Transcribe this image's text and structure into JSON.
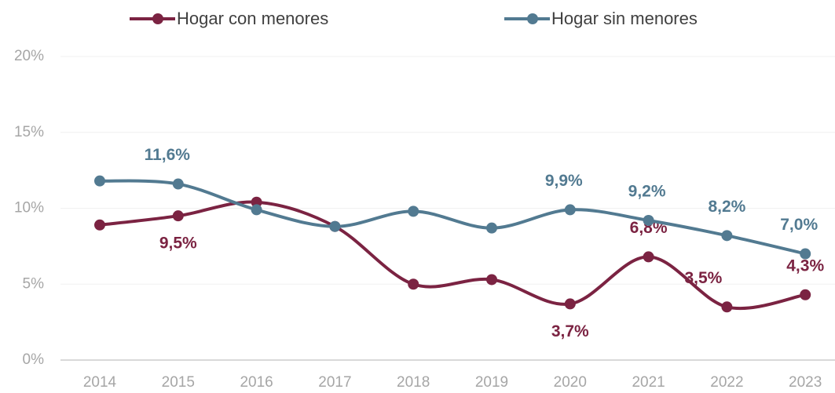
{
  "chart_data": {
    "type": "line",
    "categories": [
      "2014",
      "2015",
      "2016",
      "2017",
      "2018",
      "2019",
      "2020",
      "2021",
      "2022",
      "2023"
    ],
    "series": [
      {
        "name": "Hogar con menores",
        "color": "#7b2342",
        "values": [
          8.9,
          9.5,
          10.4,
          8.8,
          5.0,
          5.3,
          3.7,
          6.8,
          3.5,
          4.3
        ],
        "value_labels": [
          null,
          "9,5%",
          null,
          null,
          null,
          null,
          "3,7%",
          "6,8%",
          "3,5%",
          "4,3%"
        ]
      },
      {
        "name": "Hogar sin menores",
        "color": "#527a91",
        "values": [
          11.8,
          11.6,
          9.9,
          8.8,
          9.8,
          8.7,
          9.9,
          9.2,
          8.2,
          7.0
        ],
        "value_labels": [
          null,
          "11,6%",
          null,
          null,
          null,
          null,
          "9,9%",
          "9,2%",
          "8,2%",
          "7,0%"
        ]
      }
    ],
    "ylim": [
      0,
      20
    ],
    "yticks": [
      {
        "value": 0,
        "label": "0%"
      },
      {
        "value": 5,
        "label": "5%"
      },
      {
        "value": 10,
        "label": "10%"
      },
      {
        "value": 15,
        "label": "15%"
      },
      {
        "value": 20,
        "label": "20%"
      }
    ],
    "grid": true,
    "legend": "top"
  }
}
